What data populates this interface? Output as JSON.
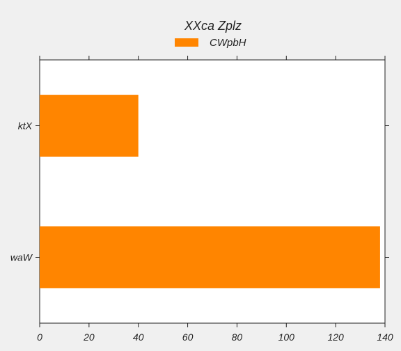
{
  "chart_data": {
    "type": "bar",
    "orientation": "horizontal",
    "title": "XXca Zplz",
    "categories": [
      "waW",
      "ktX"
    ],
    "series": [
      {
        "name": "CWpbH",
        "values": [
          138,
          40
        ]
      }
    ],
    "xlim": [
      0,
      140
    ],
    "xticks": [
      0,
      20,
      40,
      60,
      80,
      100,
      120,
      140
    ],
    "xlabel": "",
    "ylabel": "",
    "grid": false,
    "legend_position": "top-center",
    "colors": {
      "bar": "#ff8500",
      "plot_background": "#ffffff",
      "figure_background": "#f0f0f0"
    }
  }
}
